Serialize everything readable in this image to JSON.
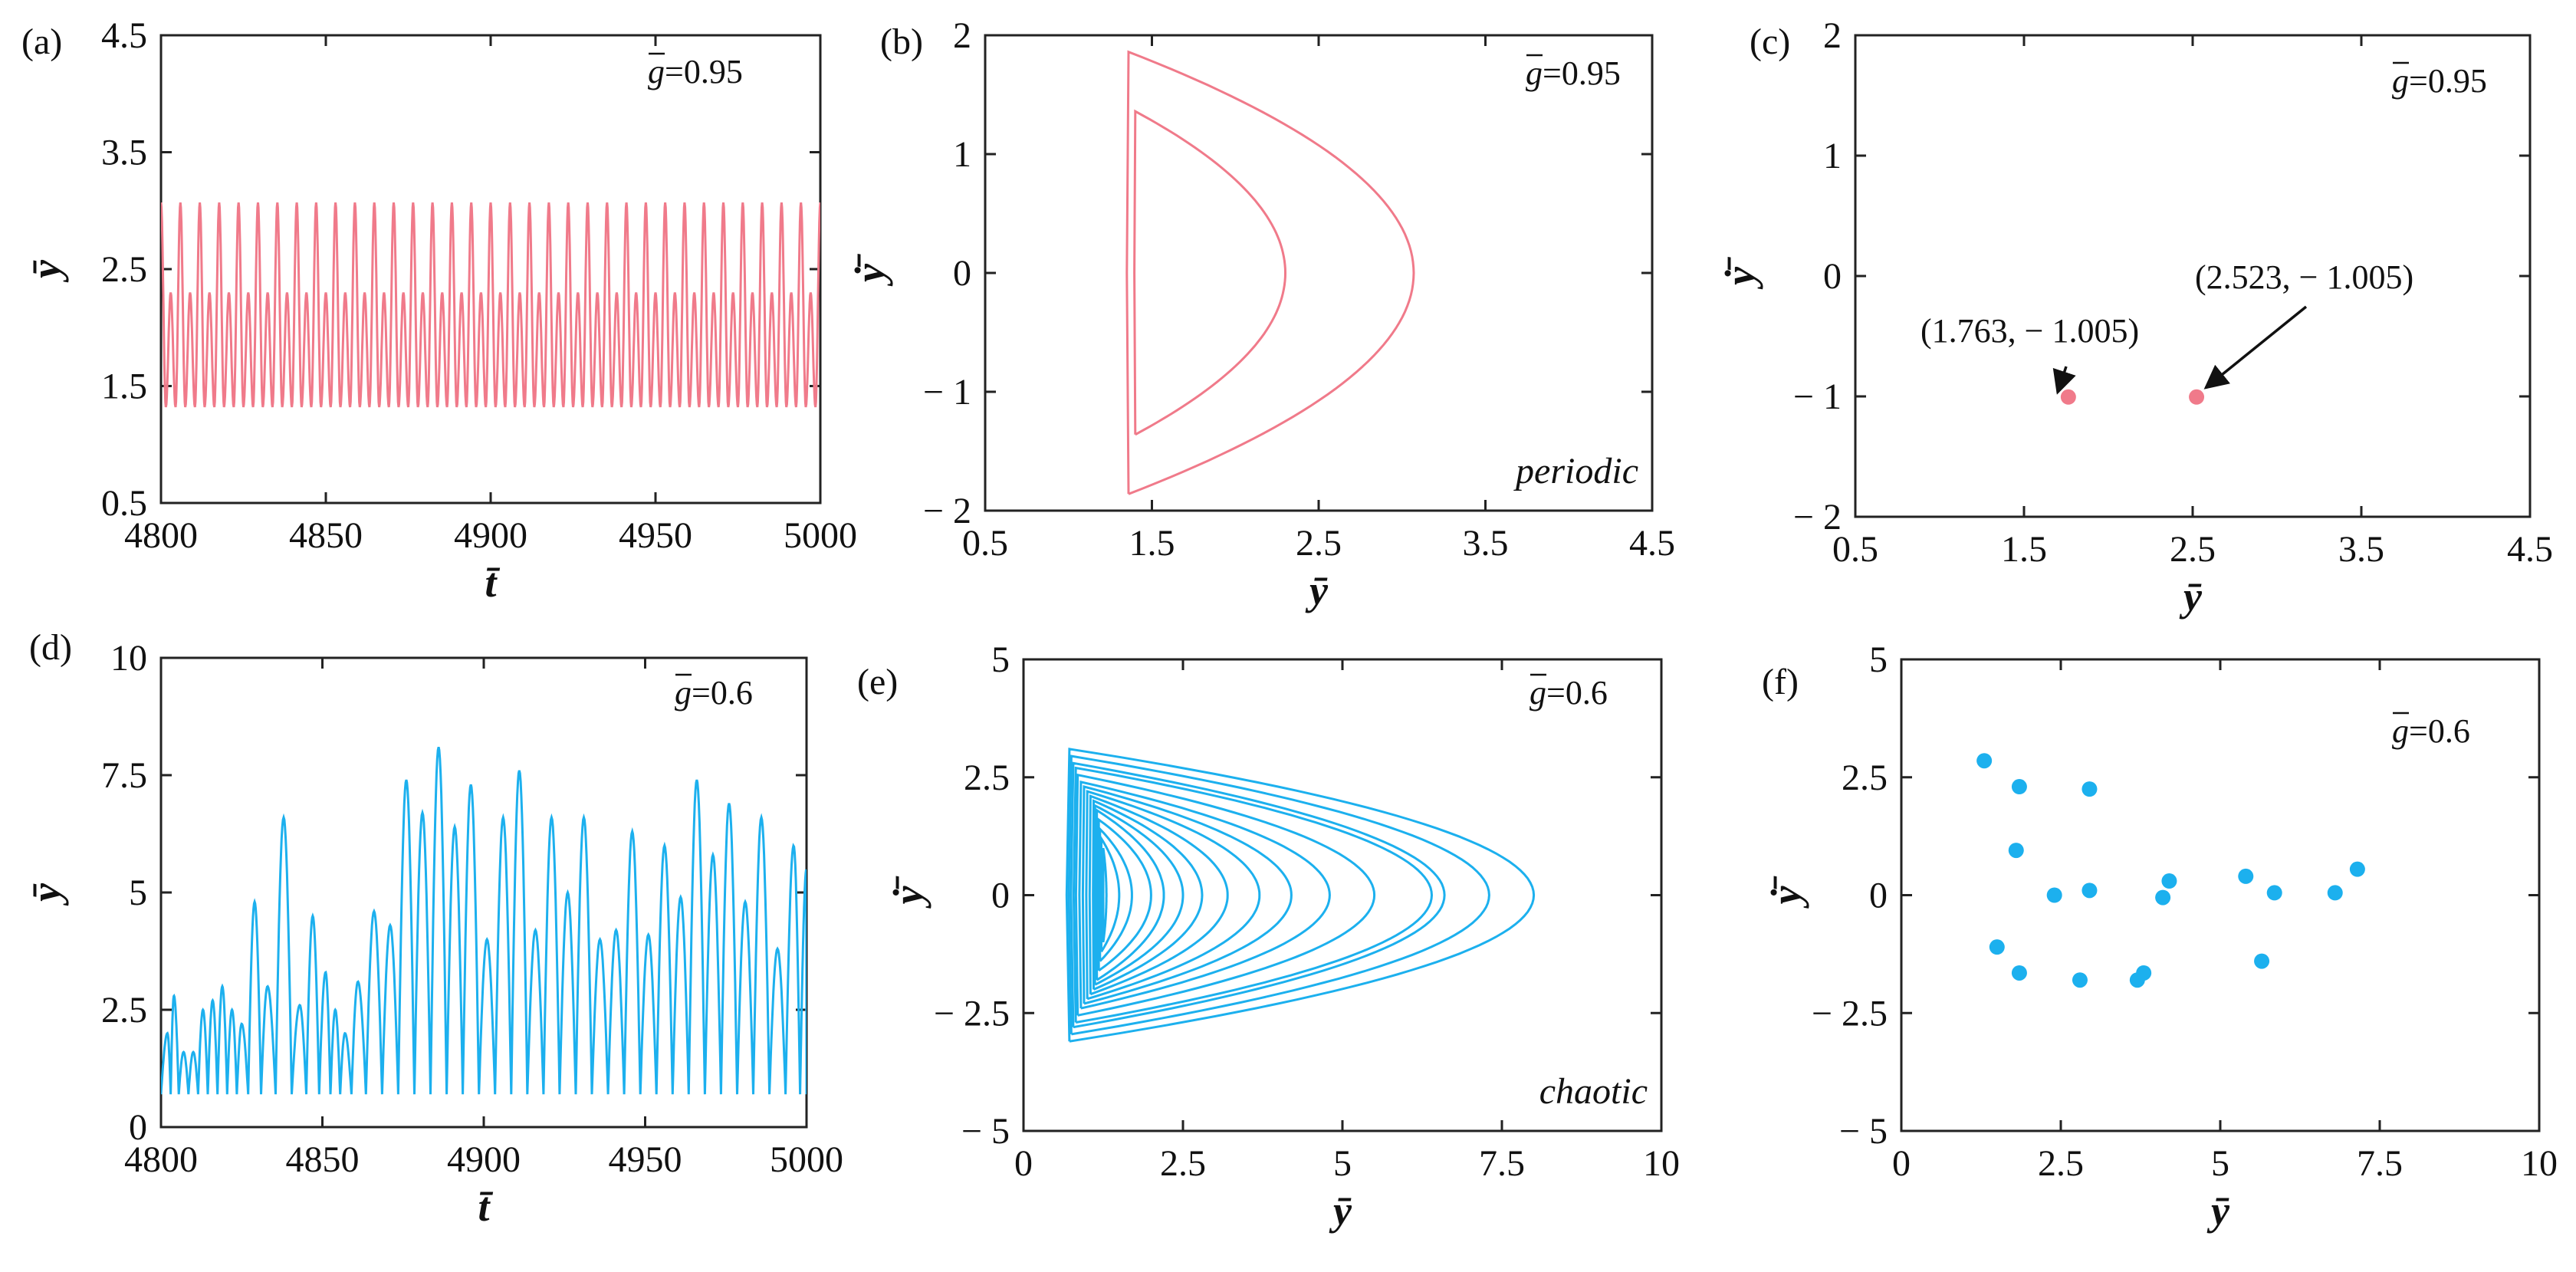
{
  "colors": {
    "periodic": "#F07A8A",
    "chaotic": "#1CB0EE",
    "axis": "#222222"
  },
  "chart_data": [
    {
      "id": "a",
      "panel_label": "(a)",
      "type": "line",
      "title": "",
      "xlabel": "t̄",
      "ylabel": "ȳ",
      "g_label": "=0.95",
      "xlim": [
        4800,
        5000
      ],
      "ylim": [
        0.5,
        4.5
      ],
      "xticks": [
        4800,
        4850,
        4900,
        4950,
        5000
      ],
      "yticks": [
        0.5,
        1.5,
        2.5,
        3.5,
        4.5
      ],
      "xtick_labels": [
        "4800",
        "4850",
        "4900",
        "4950",
        "5000"
      ],
      "ytick_labels": [
        "0.5",
        "1.5",
        "2.5",
        "3.5",
        "4.5"
      ],
      "series": [
        {
          "name": "periodic time series",
          "color": "#F07A8A",
          "y_min": 1.32,
          "y_max_big": 3.07,
          "y_max_small": 2.3,
          "big_peaks": 34
        }
      ]
    },
    {
      "id": "b",
      "panel_label": "(b)",
      "type": "line",
      "xlabel": "ȳ",
      "ylabel": "ẏ̄",
      "g_label": "=0.95",
      "regime": "periodic",
      "xlim": [
        0.5,
        4.5
      ],
      "ylim": [
        -2,
        2
      ],
      "xticks": [
        0.5,
        1.5,
        2.5,
        3.5,
        4.5
      ],
      "yticks": [
        -2,
        -1,
        0,
        1,
        2
      ],
      "xtick_labels": [
        "0.5",
        "1.5",
        "2.5",
        "3.5",
        "4.5"
      ],
      "ytick_labels": [
        "− 2",
        "− 1",
        "0",
        "1",
        "2"
      ],
      "series": [
        {
          "name": "outer orbit",
          "color": "#F07A8A",
          "x_min": 1.36,
          "x_max": 3.07,
          "ydot_max": 1.86
        },
        {
          "name": "inner orbit",
          "color": "#F07A8A",
          "x_min": 1.4,
          "x_max": 2.3,
          "ydot_max": 1.36
        }
      ]
    },
    {
      "id": "c",
      "panel_label": "(c)",
      "type": "scatter",
      "xlabel": "ȳ",
      "ylabel": "ẏ̄",
      "g_label": "=0.95",
      "xlim": [
        0.5,
        4.5
      ],
      "ylim": [
        -2,
        2
      ],
      "xticks": [
        0.5,
        1.5,
        2.5,
        3.5,
        4.5
      ],
      "yticks": [
        -2,
        -1,
        0,
        1,
        2
      ],
      "xtick_labels": [
        "0.5",
        "1.5",
        "2.5",
        "3.5",
        "4.5"
      ],
      "ytick_labels": [
        "− 2",
        "− 1",
        "0",
        "1",
        "2"
      ],
      "points": [
        [
          1.763,
          -1.005
        ],
        [
          2.523,
          -1.005
        ]
      ],
      "annotations": [
        {
          "text": "(1.763, − 1.005)",
          "target": [
            1.763,
            -1.005
          ]
        },
        {
          "text": "(2.523, − 1.005)",
          "target": [
            2.523,
            -1.005
          ]
        }
      ]
    },
    {
      "id": "d",
      "panel_label": "(d)",
      "type": "line",
      "xlabel": "t̄",
      "ylabel": "ȳ",
      "g_label": "=0.6",
      "xlim": [
        4800,
        5000
      ],
      "ylim": [
        0,
        10
      ],
      "xticks": [
        4800,
        4850,
        4900,
        4950,
        5000
      ],
      "yticks": [
        0,
        2.5,
        5,
        7.5,
        10
      ],
      "xtick_labels": [
        "4800",
        "4850",
        "4900",
        "4950",
        "5000"
      ],
      "ytick_labels": [
        "0",
        "2.5",
        "5",
        "7.5",
        "10"
      ],
      "series": [
        {
          "name": "chaotic time series",
          "color": "#1CB0EE",
          "y_min": 0.7,
          "peaks_t": [
            4802,
            4804,
            4807,
            4810,
            4813,
            4816,
            4819,
            4822,
            4825,
            4829,
            4833,
            4838,
            4843,
            4847,
            4851,
            4854,
            4857,
            4861,
            4866,
            4871,
            4876,
            4881,
            4886,
            4891,
            4896,
            4901,
            4906,
            4911,
            4916,
            4921,
            4926,
            4931,
            4936,
            4941,
            4946,
            4951,
            4956,
            4961,
            4966,
            4971,
            4976,
            4981,
            4986,
            4991,
            4996,
            5000
          ],
          "peaks_y": [
            2.0,
            2.8,
            1.6,
            1.6,
            2.5,
            2.7,
            3.0,
            2.5,
            2.2,
            4.8,
            3.0,
            6.6,
            2.6,
            4.5,
            3.3,
            2.5,
            2.0,
            3.1,
            4.6,
            4.3,
            7.4,
            6.7,
            8.1,
            6.4,
            7.3,
            4.0,
            6.6,
            7.6,
            4.2,
            6.6,
            5.0,
            6.6,
            4.0,
            4.2,
            6.3,
            4.1,
            6.0,
            4.9,
            7.4,
            5.8,
            6.9,
            4.8,
            6.6,
            3.8,
            6.0,
            5.5
          ]
        }
      ]
    },
    {
      "id": "e",
      "panel_label": "(e)",
      "type": "line",
      "xlabel": "ȳ",
      "ylabel": "ẏ̄",
      "g_label": "=0.6",
      "regime": "chaotic",
      "xlim": [
        0,
        10
      ],
      "ylim": [
        -5,
        5
      ],
      "xticks": [
        0,
        2.5,
        5,
        7.5,
        10
      ],
      "yticks": [
        -5,
        -2.5,
        0,
        2.5,
        5
      ],
      "xtick_labels": [
        "0",
        "2.5",
        "5",
        "7.5",
        "10"
      ],
      "ytick_labels": [
        "− 5",
        "− 2.5",
        "0",
        "2.5",
        "5"
      ],
      "series": [
        {
          "name": "chaotic orbit",
          "color": "#1CB0EE",
          "loop_x_max": [
            8.0,
            7.3,
            6.6,
            6.4,
            5.5,
            4.8,
            4.2,
            3.7,
            3.2,
            2.8,
            2.5,
            2.2,
            2.0,
            1.7,
            1.5,
            1.3
          ],
          "loop_ydot_max": [
            3.1,
            2.95,
            2.8,
            2.7,
            2.55,
            2.4,
            2.3,
            2.2,
            2.1,
            2.0,
            1.9,
            1.8,
            1.6,
            1.4,
            1.2,
            1.0
          ],
          "loop_x_min": [
            0.72,
            0.75,
            0.78,
            0.82,
            0.85,
            0.9,
            0.95,
            1.0,
            1.05,
            1.1,
            1.12,
            1.15,
            1.18,
            1.2,
            1.22,
            1.25
          ]
        }
      ]
    },
    {
      "id": "f",
      "panel_label": "(f)",
      "type": "scatter",
      "xlabel": "ȳ",
      "ylabel": "ẏ̄",
      "g_label": "=0.6",
      "xlim": [
        0,
        10
      ],
      "ylim": [
        -5,
        5
      ],
      "xticks": [
        0,
        2.5,
        5,
        7.5,
        10
      ],
      "yticks": [
        -5,
        -2.5,
        0,
        2.5,
        5
      ],
      "xtick_labels": [
        "0",
        "2.5",
        "5",
        "7.5",
        "10"
      ],
      "ytick_labels": [
        "− 5",
        "− 2.5",
        "0",
        "2.5",
        "5"
      ],
      "points": [
        [
          1.3,
          2.85
        ],
        [
          1.85,
          2.3
        ],
        [
          2.95,
          2.25
        ],
        [
          1.8,
          0.95
        ],
        [
          2.4,
          0.0
        ],
        [
          2.95,
          0.1
        ],
        [
          4.1,
          -0.05
        ],
        [
          4.2,
          0.3
        ],
        [
          5.4,
          0.4
        ],
        [
          5.85,
          0.05
        ],
        [
          6.8,
          0.05
        ],
        [
          7.15,
          0.55
        ],
        [
          1.5,
          -1.1
        ],
        [
          1.85,
          -1.65
        ],
        [
          2.8,
          -1.8
        ],
        [
          3.7,
          -1.8
        ],
        [
          3.8,
          -1.65
        ],
        [
          5.65,
          -1.4
        ]
      ]
    }
  ]
}
